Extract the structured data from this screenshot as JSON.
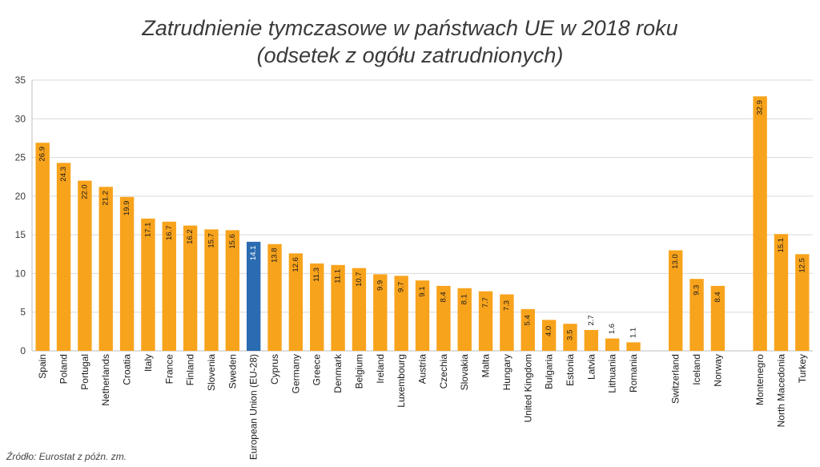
{
  "title": "Zatrudnienie tymczasowe w państwach UE w 2018 roku",
  "subtitle": "(odsetek z ogółu zatrudnionych)",
  "source": "Źródło: Eurostat z późn. zm.",
  "colors": {
    "bar": "#f8a31c",
    "highlight": "#2a6bb1",
    "grid": "#d9d9d9",
    "text": "#3a3a3a"
  },
  "chart_data": {
    "type": "bar",
    "title": "Zatrudnienie tymczasowe w państwach UE w 2018 roku",
    "subtitle": "(odsetek z ogółu zatrudnionych)",
    "ylim": [
      0,
      35
    ],
    "yticks": [
      0,
      5,
      10,
      15,
      20,
      25,
      30,
      35
    ],
    "grid": true,
    "highlight_category": "European Union (EU-28)",
    "categories": [
      "Spain",
      "Poland",
      "Portugal",
      "Netherlands",
      "Croatia",
      "Italy",
      "France",
      "Finland",
      "Slovenia",
      "Sweden",
      "European Union (EU-28)",
      "Cyprus",
      "Germany",
      "Greece",
      "Denmark",
      "Belgium",
      "Ireland",
      "Luxembourg",
      "Austria",
      "Czechia",
      "Slovakia",
      "Malta",
      "Hungary",
      "United Kingdom",
      "Bulgaria",
      "Estonia",
      "Latvia",
      "Lithuania",
      "Romania",
      "",
      "Switzerland",
      "Iceland",
      "Norway",
      "",
      "Montenegro",
      "North Macedonia",
      "Turkey"
    ],
    "values": [
      26.9,
      24.3,
      22.0,
      21.2,
      19.9,
      17.1,
      16.7,
      16.2,
      15.7,
      15.6,
      14.1,
      13.8,
      12.6,
      11.3,
      11.1,
      10.7,
      9.9,
      9.7,
      9.1,
      8.4,
      8.1,
      7.7,
      7.3,
      5.4,
      4.0,
      3.5,
      2.7,
      1.6,
      1.1,
      null,
      13.0,
      9.3,
      8.4,
      null,
      32.9,
      15.1,
      12.5
    ],
    "labels": [
      "26.9",
      "24.3",
      "22.0",
      "21.2",
      "19.9",
      "17.1",
      "16.7",
      "16.2",
      "15.7",
      "15.6",
      "14.1",
      "13.8",
      "12.6",
      "11.3",
      "11.1",
      "10.7",
      "9.9",
      "9.7",
      "9.1",
      "8.4",
      "8.1",
      "7.7",
      "7.3",
      "5.4",
      "4.0",
      "3.5",
      "2.7",
      "1.6",
      "1.1",
      "",
      "13.0",
      "9.3",
      "8.4",
      "",
      "32.9",
      "15.1",
      "12.5"
    ]
  }
}
